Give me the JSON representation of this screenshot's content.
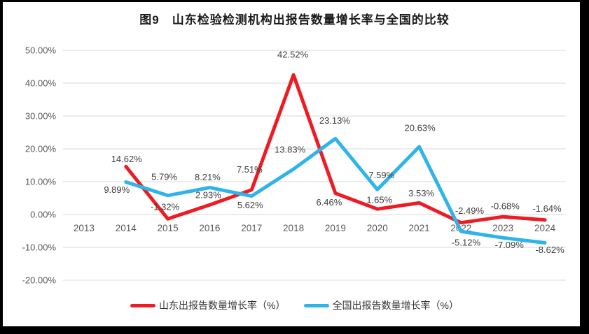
{
  "title": "图9　山东检验检测机构出报告数量增长率与全国的比较",
  "colors": {
    "shandong_line": "#ED1C24",
    "national_line": "#2FB4E9",
    "gridline": "#D9D9D9",
    "axis_text": "#595959",
    "label_text": "#3F3F3F",
    "frame": "#000000",
    "background": "#FFFFFF"
  },
  "chart_data": {
    "type": "line",
    "title": "图9　山东检验检测机构出报告数量增长率与全国的比较",
    "categories": [
      "2013",
      "2014",
      "2015",
      "2016",
      "2017",
      "2018",
      "2019",
      "2020",
      "2021",
      "2022",
      "2023",
      "2024"
    ],
    "series": [
      {
        "name": "山东出报告数量增长率（%）",
        "color": "#ED1C24",
        "values": [
          null,
          14.62,
          -1.32,
          2.93,
          7.51,
          42.52,
          6.46,
          1.65,
          3.53,
          -2.49,
          -0.68,
          -1.64
        ],
        "point_labels": [
          null,
          "14.62%",
          "-1.32%",
          "2.93%",
          "7.51%",
          "42.52%",
          "6.46%",
          "1.65%",
          "3.53%",
          "-2.49%",
          "-0.68%",
          "-1.64%"
        ]
      },
      {
        "name": "全国出报告数量增长率（%）",
        "color": "#2FB4E9",
        "values": [
          null,
          9.89,
          5.79,
          8.21,
          5.62,
          13.83,
          23.13,
          7.59,
          20.63,
          -5.12,
          -7.09,
          -8.62
        ],
        "point_labels": [
          null,
          "9.89%",
          "5.79%",
          "8.21%",
          "5.62%",
          "13.83%",
          "23.13%",
          "7.59%",
          "20.63%",
          "-5.12%",
          "-7.09%",
          "-8.62%"
        ]
      }
    ],
    "y_ticks": [
      {
        "value": 50,
        "label": "50.00%"
      },
      {
        "value": 40,
        "label": "40.00%"
      },
      {
        "value": 30,
        "label": "30.00%"
      },
      {
        "value": 20,
        "label": "20.00%"
      },
      {
        "value": 10,
        "label": "10.00%"
      },
      {
        "value": 0,
        "label": "0.00%"
      },
      {
        "value": -10,
        "label": "-10.00%"
      },
      {
        "value": -20,
        "label": "-20.00%"
      }
    ],
    "ylim": [
      -20,
      50
    ],
    "grid": true,
    "xlabel": "",
    "ylabel": "",
    "legend_position": "bottom"
  },
  "legend": {
    "items": [
      {
        "label": "山东出报告数量增长率（%）",
        "color": "#ED1C24"
      },
      {
        "label": "全国出报告数量增长率（%）",
        "color": "#2FB4E9"
      }
    ]
  }
}
